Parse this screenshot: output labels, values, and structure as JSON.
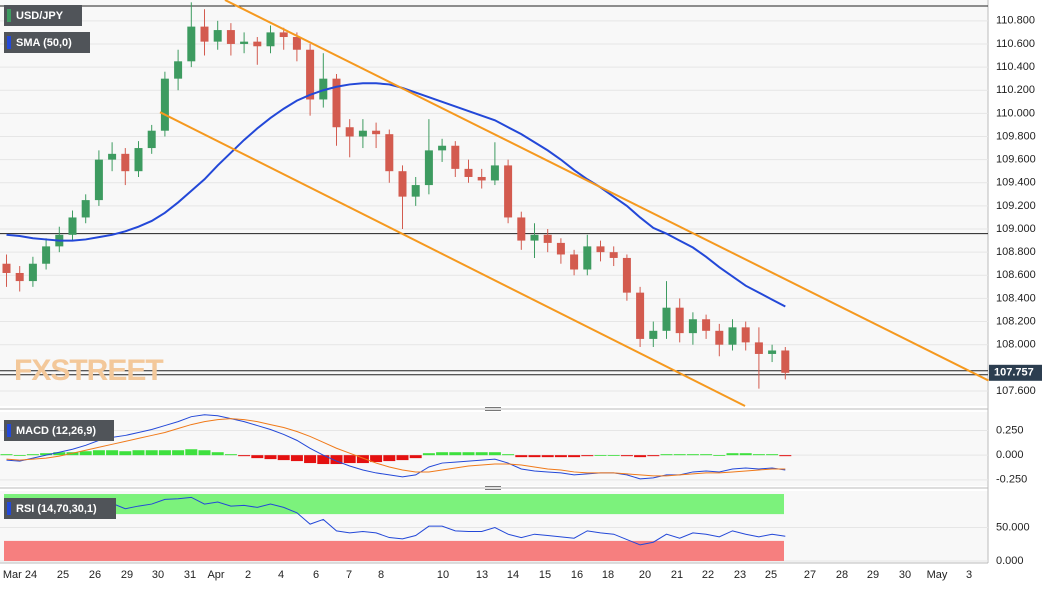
{
  "chart_data": {
    "type": "candlestick",
    "symbol": "USD/JPY",
    "indicator_label": "SMA (50,0)",
    "watermark": "FXSTREET",
    "x_labels": [
      "Mar 24",
      "25",
      "26",
      "29",
      "30",
      "31",
      "Apr",
      "2",
      "4",
      "6",
      "7",
      "8",
      "10",
      "13",
      "14",
      "15",
      "16",
      "18",
      "20",
      "21",
      "22",
      "23",
      "25",
      "27",
      "28",
      "29",
      "30",
      "May",
      "3"
    ],
    "colors": {
      "up": "#3d9b60",
      "down": "#d35b4f"
    },
    "ylim": [
      107.47,
      110.98
    ],
    "yticks": [
      {
        "value": 110.8,
        "label": "110.800"
      },
      {
        "value": 110.6,
        "label": "110.600"
      },
      {
        "value": 110.4,
        "label": "110.400"
      },
      {
        "value": 110.2,
        "label": "110.200"
      },
      {
        "value": 110.0,
        "label": "110.000"
      },
      {
        "value": 109.8,
        "label": "109.800"
      },
      {
        "value": 109.6,
        "label": "109.600"
      },
      {
        "value": 109.4,
        "label": "109.400"
      },
      {
        "value": 109.2,
        "label": "109.200"
      },
      {
        "value": 109.0,
        "label": "109.000"
      },
      {
        "value": 108.8,
        "label": "108.800"
      },
      {
        "value": 108.6,
        "label": "108.600"
      },
      {
        "value": 108.4,
        "label": "108.400"
      },
      {
        "value": 108.2,
        "label": "108.200"
      },
      {
        "value": 108.0,
        "label": "108.000"
      },
      {
        "value": 107.6,
        "label": "107.600"
      }
    ],
    "ohlc": [
      [
        108.7,
        108.78,
        108.5,
        108.62
      ],
      [
        108.62,
        108.68,
        108.46,
        108.55
      ],
      [
        108.55,
        108.76,
        108.5,
        108.7
      ],
      [
        108.7,
        108.92,
        108.65,
        108.85
      ],
      [
        108.85,
        109.02,
        108.8,
        108.95
      ],
      [
        108.95,
        109.16,
        108.9,
        109.1
      ],
      [
        109.1,
        109.3,
        109.05,
        109.25
      ],
      [
        109.25,
        109.68,
        109.2,
        109.6
      ],
      [
        109.6,
        109.75,
        109.5,
        109.65
      ],
      [
        109.65,
        109.7,
        109.38,
        109.5
      ],
      [
        109.5,
        109.76,
        109.45,
        109.7
      ],
      [
        109.7,
        109.9,
        109.65,
        109.85
      ],
      [
        109.85,
        110.36,
        109.8,
        110.3
      ],
      [
        110.3,
        110.55,
        110.2,
        110.45
      ],
      [
        110.45,
        110.96,
        110.4,
        110.75
      ],
      [
        110.75,
        110.9,
        110.5,
        110.62
      ],
      [
        110.62,
        110.8,
        110.55,
        110.72
      ],
      [
        110.72,
        110.78,
        110.5,
        110.6
      ],
      [
        110.6,
        110.7,
        110.52,
        110.62
      ],
      [
        110.62,
        110.66,
        110.42,
        110.58
      ],
      [
        110.58,
        110.76,
        110.52,
        110.7
      ],
      [
        110.7,
        110.74,
        110.55,
        110.66
      ],
      [
        110.66,
        110.7,
        110.45,
        110.55
      ],
      [
        110.55,
        110.6,
        109.98,
        110.12
      ],
      [
        110.12,
        110.52,
        110.05,
        110.3
      ],
      [
        110.3,
        110.34,
        109.72,
        109.88
      ],
      [
        109.88,
        109.95,
        109.62,
        109.8
      ],
      [
        109.8,
        109.95,
        109.7,
        109.85
      ],
      [
        109.85,
        109.92,
        109.7,
        109.82
      ],
      [
        109.82,
        109.86,
        109.4,
        109.5
      ],
      [
        109.5,
        109.55,
        109.0,
        109.28
      ],
      [
        109.28,
        109.45,
        109.2,
        109.38
      ],
      [
        109.38,
        109.95,
        109.3,
        109.68
      ],
      [
        109.68,
        109.78,
        109.58,
        109.72
      ],
      [
        109.72,
        109.76,
        109.45,
        109.52
      ],
      [
        109.52,
        109.6,
        109.4,
        109.45
      ],
      [
        109.45,
        109.52,
        109.35,
        109.42
      ],
      [
        109.42,
        109.75,
        109.38,
        109.55
      ],
      [
        109.55,
        109.6,
        109.05,
        109.1
      ],
      [
        109.1,
        109.15,
        108.82,
        108.9
      ],
      [
        108.9,
        109.05,
        108.75,
        108.95
      ],
      [
        108.95,
        109.0,
        108.8,
        108.88
      ],
      [
        108.88,
        108.92,
        108.7,
        108.78
      ],
      [
        108.78,
        108.82,
        108.6,
        108.65
      ],
      [
        108.65,
        108.95,
        108.6,
        108.85
      ],
      [
        108.85,
        108.9,
        108.72,
        108.8
      ],
      [
        108.8,
        108.85,
        108.68,
        108.75
      ],
      [
        108.75,
        108.78,
        108.38,
        108.45
      ],
      [
        108.45,
        108.5,
        107.98,
        108.05
      ],
      [
        108.05,
        108.2,
        107.98,
        108.12
      ],
      [
        108.12,
        108.55,
        108.05,
        108.32
      ],
      [
        108.32,
        108.4,
        108.02,
        108.1
      ],
      [
        108.1,
        108.28,
        108.0,
        108.22
      ],
      [
        108.22,
        108.26,
        108.05,
        108.12
      ],
      [
        108.12,
        108.18,
        107.9,
        108.0
      ],
      [
        108.0,
        108.22,
        107.95,
        108.15
      ],
      [
        108.15,
        108.2,
        107.95,
        108.02
      ],
      [
        108.02,
        108.15,
        107.62,
        107.92
      ],
      [
        107.92,
        108.0,
        107.85,
        107.95
      ],
      [
        107.95,
        107.98,
        107.7,
        107.757
      ]
    ],
    "last_label": "107.757",
    "sma": {
      "color": "#2348d8",
      "values": [
        108.95,
        108.94,
        108.92,
        108.91,
        108.9,
        108.9,
        108.91,
        108.93,
        108.95,
        108.98,
        109.02,
        109.07,
        109.14,
        109.23,
        109.33,
        109.43,
        109.55,
        109.66,
        109.77,
        109.87,
        109.96,
        110.04,
        110.11,
        110.16,
        110.2,
        110.23,
        110.25,
        110.26,
        110.26,
        110.25,
        110.22,
        110.18,
        110.14,
        110.1,
        110.06,
        110.02,
        109.98,
        109.94,
        109.88,
        109.82,
        109.75,
        109.68,
        109.6,
        109.51,
        109.43,
        109.36,
        109.28,
        109.2,
        109.1,
        109.01,
        108.96,
        108.9,
        108.84,
        108.76,
        108.67,
        108.59,
        108.51,
        108.45,
        108.39,
        108.33
      ]
    },
    "hlines": [
      110.928,
      108.96,
      107.775,
      107.74
    ],
    "trendlines": [
      {
        "color": "#f5991f",
        "x": [
          16.55,
          74.4
        ],
        "y": [
          110.98,
          107.69
        ]
      },
      {
        "color": "#f5991f",
        "x": [
          11.63,
          55.95
        ],
        "y": [
          110.01,
          107.47
        ]
      }
    ],
    "macd": {
      "label": "MACD (12,26,9)",
      "ylim": [
        -0.3125,
        0.4375
      ],
      "yticks": [
        {
          "value": 0.25,
          "label": "0.250"
        },
        {
          "value": 0,
          "label": "0.000"
        },
        {
          "value": -0.25,
          "label": "-0.250"
        }
      ],
      "macd_color": "#2348d8",
      "signal_color": "#f07a1a",
      "pos_color": "#3ee03e",
      "neg_color": "#e41010",
      "macd": [
        -0.05,
        -0.06,
        -0.03,
        0.0,
        0.03,
        0.06,
        0.1,
        0.15,
        0.18,
        0.2,
        0.23,
        0.26,
        0.3,
        0.34,
        0.39,
        0.41,
        0.4,
        0.37,
        0.34,
        0.3,
        0.26,
        0.21,
        0.15,
        0.07,
        0.0,
        -0.06,
        -0.11,
        -0.15,
        -0.18,
        -0.2,
        -0.22,
        -0.2,
        -0.12,
        -0.08,
        -0.07,
        -0.06,
        -0.05,
        -0.04,
        -0.08,
        -0.14,
        -0.16,
        -0.17,
        -0.18,
        -0.2,
        -0.19,
        -0.18,
        -0.18,
        -0.2,
        -0.24,
        -0.23,
        -0.2,
        -0.2,
        -0.17,
        -0.16,
        -0.17,
        -0.14,
        -0.13,
        -0.14,
        -0.13,
        -0.15
      ],
      "signal": [
        -0.04,
        -0.05,
        -0.04,
        -0.03,
        -0.01,
        0.02,
        0.05,
        0.08,
        0.11,
        0.14,
        0.17,
        0.2,
        0.23,
        0.27,
        0.31,
        0.34,
        0.36,
        0.37,
        0.36,
        0.34,
        0.31,
        0.28,
        0.24,
        0.19,
        0.13,
        0.07,
        0.02,
        -0.03,
        -0.08,
        -0.12,
        -0.15,
        -0.17,
        -0.17,
        -0.15,
        -0.13,
        -0.11,
        -0.1,
        -0.09,
        -0.09,
        -0.1,
        -0.12,
        -0.14,
        -0.15,
        -0.17,
        -0.18,
        -0.18,
        -0.18,
        -0.19,
        -0.2,
        -0.21,
        -0.21,
        -0.2,
        -0.19,
        -0.18,
        -0.18,
        -0.17,
        -0.16,
        -0.15,
        -0.14,
        -0.14
      ],
      "histogram": [
        0.01,
        0.0,
        0.01,
        0.02,
        0.03,
        0.03,
        0.04,
        0.05,
        0.05,
        0.04,
        0.05,
        0.05,
        0.05,
        0.05,
        0.06,
        0.05,
        0.03,
        0.01,
        -0.01,
        -0.03,
        -0.04,
        -0.05,
        -0.06,
        -0.08,
        -0.09,
        -0.09,
        -0.08,
        -0.08,
        -0.07,
        -0.06,
        -0.05,
        -0.03,
        0.02,
        0.03,
        0.03,
        0.03,
        0.03,
        0.03,
        0.01,
        -0.02,
        -0.02,
        -0.02,
        -0.02,
        -0.02,
        -0.01,
        0.0,
        0.0,
        -0.01,
        -0.02,
        -0.01,
        0.01,
        0.01,
        0.01,
        0.01,
        0.0,
        0.02,
        0.02,
        0.01,
        0.01,
        -0.01
      ]
    },
    "rsi": {
      "label": "RSI (14,70,30,1)",
      "ylim": [
        -3,
        104.5
      ],
      "yticks": [
        {
          "value": 50,
          "label": "50.000"
        },
        {
          "value": 0,
          "label": "0.000"
        }
      ],
      "overbought": [
        70,
        100
      ],
      "oversold": [
        0,
        30
      ],
      "overbought_color": "#7cf27c",
      "oversold_color": "#f67f7f",
      "color": "#2348d8",
      "values": [
        72,
        70,
        76,
        78,
        80,
        82,
        84,
        90,
        86,
        78,
        82,
        85,
        92,
        93,
        95,
        85,
        88,
        82,
        83,
        80,
        85,
        80,
        72,
        55,
        62,
        45,
        42,
        44,
        42,
        35,
        33,
        38,
        52,
        52,
        45,
        44,
        44,
        50,
        40,
        35,
        40,
        38,
        36,
        34,
        45,
        42,
        40,
        32,
        24,
        28,
        40,
        34,
        42,
        40,
        36,
        45,
        40,
        36,
        40,
        37
      ]
    }
  }
}
